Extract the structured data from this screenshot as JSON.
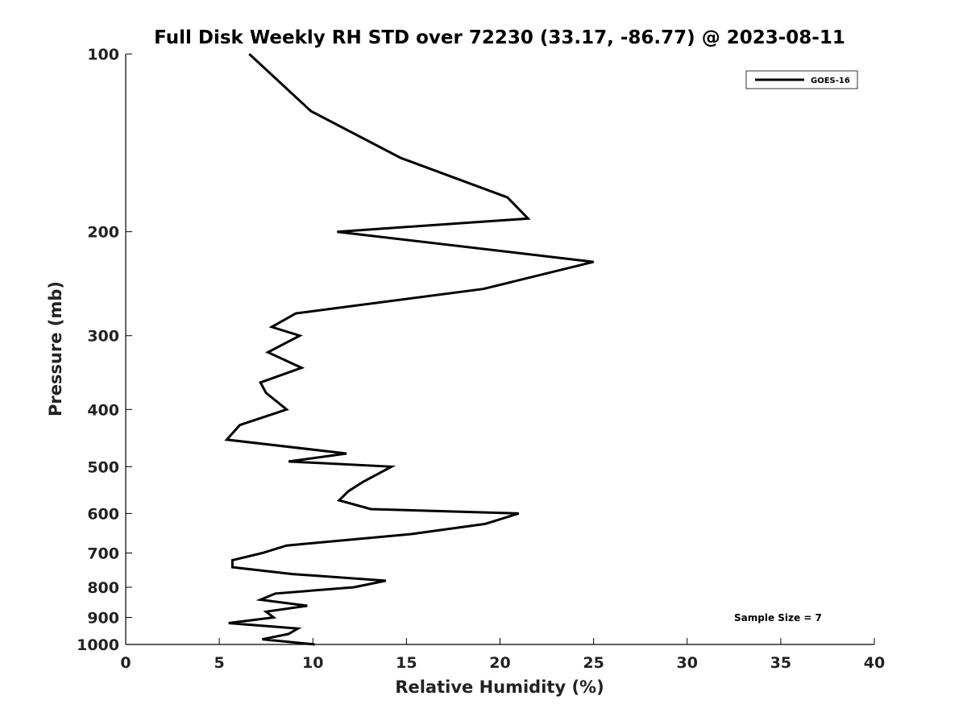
{
  "chart_data": {
    "type": "line",
    "title": "Full Disk Weekly RH STD over 72230 (33.17, -86.77) @ 2023-08-11",
    "xlabel": "Relative Humidity (%)",
    "ylabel": "Pressure (mb)",
    "xlim": [
      0,
      40
    ],
    "ylim": [
      1000,
      100
    ],
    "y_scale": "log",
    "y_inverted": true,
    "xticks": [
      "0",
      "5",
      "10",
      "15",
      "20",
      "25",
      "30",
      "35",
      "40"
    ],
    "yticks": [
      "100",
      "200",
      "300",
      "400",
      "500",
      "600",
      "700",
      "800",
      "900",
      "1000"
    ],
    "grid": false,
    "legend_position": "top-right",
    "annotation": "Sample Size = 7",
    "series": [
      {
        "name": "GOES-16",
        "color": "#000000",
        "points": [
          [
            6.6,
            100
          ],
          [
            9.9,
            125
          ],
          [
            14.7,
            150
          ],
          [
            20.4,
            175
          ],
          [
            21.5,
            190
          ],
          [
            11.3,
            200
          ],
          [
            25.0,
            225
          ],
          [
            19.1,
            250
          ],
          [
            9.1,
            275
          ],
          [
            7.8,
            290
          ],
          [
            9.3,
            300
          ],
          [
            7.6,
            320
          ],
          [
            9.4,
            340
          ],
          [
            7.2,
            360
          ],
          [
            7.5,
            375
          ],
          [
            8.6,
            400
          ],
          [
            6.1,
            425
          ],
          [
            5.4,
            450
          ],
          [
            11.8,
            475
          ],
          [
            8.7,
            490
          ],
          [
            14.2,
            500
          ],
          [
            12.7,
            530
          ],
          [
            11.9,
            550
          ],
          [
            11.4,
            570
          ],
          [
            13.1,
            590
          ],
          [
            21.0,
            600
          ],
          [
            19.2,
            625
          ],
          [
            15.3,
            650
          ],
          [
            8.6,
            680
          ],
          [
            7.3,
            700
          ],
          [
            5.7,
            720
          ],
          [
            5.7,
            740
          ],
          [
            8.9,
            760
          ],
          [
            13.9,
            780
          ],
          [
            12.2,
            800
          ],
          [
            8.0,
            820
          ],
          [
            7.2,
            840
          ],
          [
            9.7,
            860
          ],
          [
            7.5,
            880
          ],
          [
            7.9,
            900
          ],
          [
            5.5,
            920
          ],
          [
            9.2,
            940
          ],
          [
            8.7,
            960
          ],
          [
            7.3,
            980
          ],
          [
            10.1,
            1000
          ]
        ]
      }
    ]
  }
}
